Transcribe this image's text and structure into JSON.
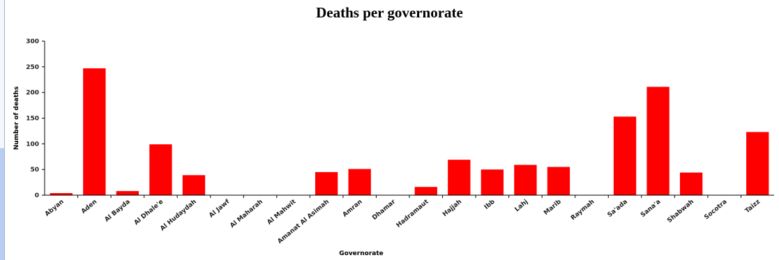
{
  "chart_data": {
    "type": "bar",
    "title": "Deaths per governorate",
    "xlabel": "Governorate",
    "ylabel": "Number of deaths",
    "ylim": [
      0,
      300
    ],
    "yticks": [
      0,
      50,
      100,
      150,
      200,
      250,
      300
    ],
    "grid": false,
    "legend": "none",
    "bar_color": "#ff0000",
    "categories": [
      "Abyan",
      "Aden",
      "Al Bayda",
      "Al Dhale'e",
      "Al Hudaydah",
      "Al Jawf",
      "Al Maharah",
      "Al Mahwit",
      "Amanat Al Asimah",
      "Amran",
      "Dhamar",
      "Hadramaut",
      "Hajjah",
      "Ibb",
      "Lahj",
      "Marib",
      "Raymah",
      "Sa'ada",
      "Sana'a",
      "Shabwah",
      "Socotra",
      "Taizz"
    ],
    "values": [
      4,
      247,
      8,
      99,
      39,
      0,
      0,
      0,
      45,
      51,
      0,
      16,
      69,
      50,
      59,
      55,
      0,
      153,
      211,
      44,
      0,
      123
    ]
  }
}
